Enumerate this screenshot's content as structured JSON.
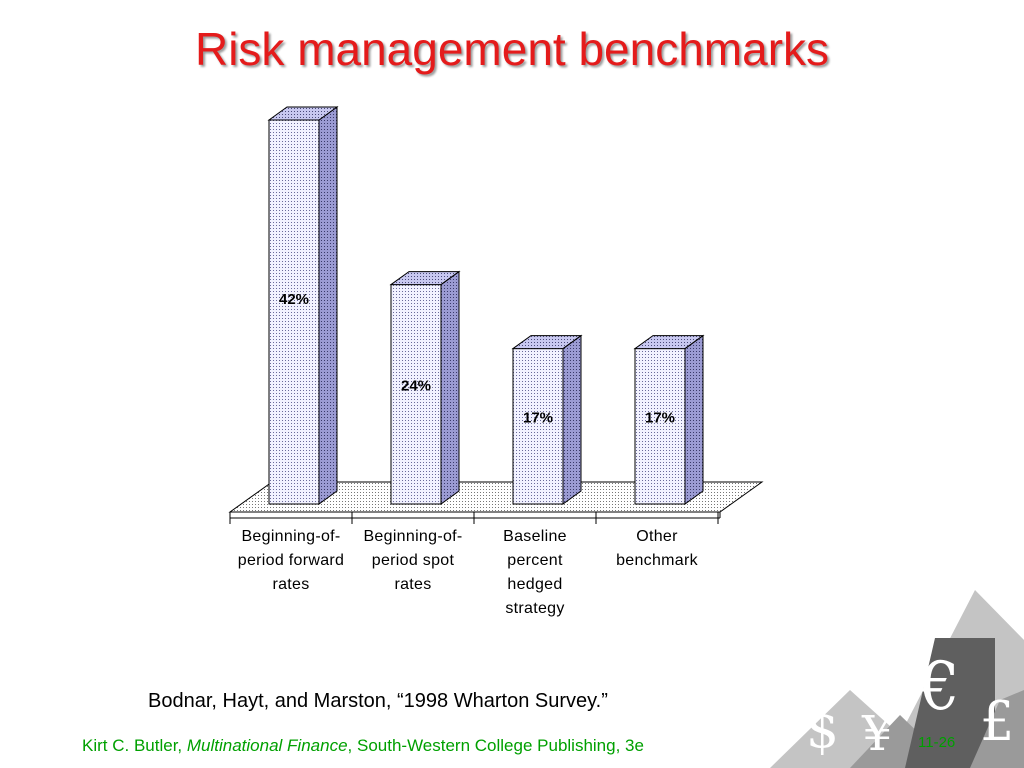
{
  "slide": {
    "title": "Risk management benchmarks",
    "source": "Bodnar, Hayt, and Marston, “1998 Wharton Survey.”",
    "footer": {
      "author": "Kirt C. Butler,",
      "book": "Multinational Finance",
      "publisher": ", South-Western College Publishing, 3e"
    },
    "slide_number": "11-26",
    "decoration": {
      "symbols": [
        "€",
        "£",
        "¥",
        "$"
      ],
      "colors": {
        "dark": "#5f5f5f",
        "mid": "#9a9a9a",
        "light": "#c4c4c4"
      }
    }
  },
  "colors": {
    "title": "#e41b1b",
    "footer": "#00a000",
    "bar_front": "#f2f2ff",
    "bar_side": "#9b9bd3",
    "bar_top": "#c8c8f0",
    "floor": "#ececec"
  },
  "chart_data": {
    "type": "bar",
    "title": "",
    "categories": [
      [
        "Beginning-of-",
        "period forward",
        "rates"
      ],
      [
        "Beginning-of-",
        "period spot",
        "rates"
      ],
      [
        "Baseline",
        "percent",
        "hedged",
        "strategy"
      ],
      [
        "Other",
        "benchmark"
      ]
    ],
    "values": [
      42,
      24,
      17,
      17
    ],
    "data_labels": [
      "42%",
      "24%",
      "17%",
      "17%"
    ],
    "ylim": [
      0,
      42
    ],
    "grid": false,
    "legend": "none",
    "style": "3d-column"
  }
}
